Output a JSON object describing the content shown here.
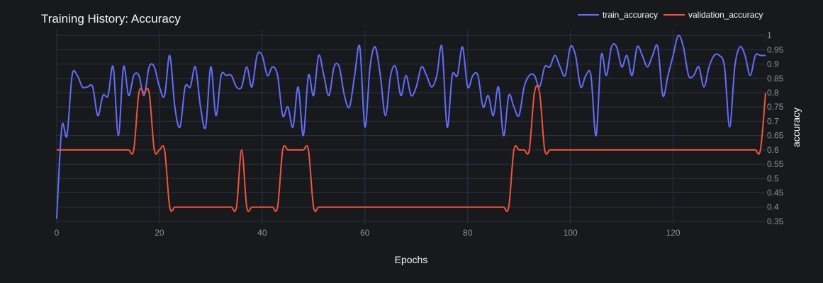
{
  "chart_data": {
    "type": "line",
    "title": "Training History: Accuracy",
    "xlabel": "Epochs",
    "ylabel": "accuracy",
    "xlim": [
      0,
      138
    ],
    "ylim": [
      0.34,
      1.02
    ],
    "x_ticks": [
      0,
      20,
      40,
      60,
      80,
      100,
      120
    ],
    "y_ticks": [
      0.35,
      0.4,
      0.45,
      0.5,
      0.55,
      0.6,
      0.65,
      0.7,
      0.75,
      0.8,
      0.85,
      0.9,
      0.95,
      1
    ],
    "grid": true,
    "legend_position": "top-right",
    "series": [
      {
        "name": "train_accuracy",
        "color": "#636efa",
        "values": [
          0.36,
          0.68,
          0.65,
          0.86,
          0.86,
          0.82,
          0.82,
          0.82,
          0.72,
          0.79,
          0.79,
          0.89,
          0.65,
          0.89,
          0.79,
          0.86,
          0.86,
          0.79,
          0.89,
          0.89,
          0.82,
          0.79,
          0.93,
          0.75,
          0.68,
          0.82,
          0.82,
          0.89,
          0.75,
          0.68,
          0.89,
          0.72,
          0.86,
          0.86,
          0.86,
          0.82,
          0.82,
          0.89,
          0.82,
          0.93,
          0.93,
          0.86,
          0.89,
          0.86,
          0.72,
          0.75,
          0.68,
          0.82,
          0.65,
          0.86,
          0.79,
          0.93,
          0.86,
          0.79,
          0.89,
          0.89,
          0.79,
          0.75,
          0.86,
          0.96,
          0.68,
          0.89,
          0.96,
          0.86,
          0.72,
          0.86,
          0.89,
          0.79,
          0.86,
          0.79,
          0.82,
          0.89,
          0.86,
          0.82,
          0.86,
          0.96,
          0.68,
          0.86,
          0.86,
          0.96,
          0.82,
          0.86,
          0.86,
          0.75,
          0.79,
          0.72,
          0.82,
          0.65,
          0.79,
          0.75,
          0.72,
          0.82,
          0.86,
          0.86,
          0.82,
          0.89,
          0.89,
          0.93,
          0.89,
          0.86,
          0.96,
          0.93,
          0.82,
          0.86,
          0.86,
          0.65,
          0.93,
          0.86,
          0.96,
          0.96,
          0.89,
          0.93,
          0.86,
          0.96,
          0.93,
          0.89,
          0.93,
          0.96,
          0.79,
          0.86,
          0.93,
          1.0,
          0.96,
          0.86,
          0.86,
          0.89,
          0.82,
          0.89,
          0.93,
          0.93,
          0.89,
          0.68,
          0.89,
          0.96,
          0.93,
          0.86,
          0.93,
          0.93,
          0.93
        ]
      },
      {
        "name": "validation_accuracy",
        "color": "#ef553b",
        "values": [
          0.6,
          0.6,
          0.6,
          0.6,
          0.6,
          0.6,
          0.6,
          0.6,
          0.6,
          0.6,
          0.6,
          0.6,
          0.6,
          0.6,
          0.6,
          0.6,
          0.8,
          0.8,
          0.8,
          0.6,
          0.6,
          0.6,
          0.4,
          0.4,
          0.4,
          0.4,
          0.4,
          0.4,
          0.4,
          0.4,
          0.4,
          0.4,
          0.4,
          0.4,
          0.4,
          0.4,
          0.6,
          0.4,
          0.4,
          0.4,
          0.4,
          0.4,
          0.4,
          0.4,
          0.6,
          0.6,
          0.6,
          0.6,
          0.6,
          0.6,
          0.4,
          0.4,
          0.4,
          0.4,
          0.4,
          0.4,
          0.4,
          0.4,
          0.4,
          0.4,
          0.4,
          0.4,
          0.4,
          0.4,
          0.4,
          0.4,
          0.4,
          0.4,
          0.4,
          0.4,
          0.4,
          0.4,
          0.4,
          0.4,
          0.4,
          0.4,
          0.4,
          0.4,
          0.4,
          0.4,
          0.4,
          0.4,
          0.4,
          0.4,
          0.4,
          0.4,
          0.4,
          0.4,
          0.4,
          0.6,
          0.6,
          0.6,
          0.6,
          0.8,
          0.8,
          0.6,
          0.6,
          0.6,
          0.6,
          0.6,
          0.6,
          0.6,
          0.6,
          0.6,
          0.6,
          0.6,
          0.6,
          0.6,
          0.6,
          0.6,
          0.6,
          0.6,
          0.6,
          0.6,
          0.6,
          0.6,
          0.6,
          0.6,
          0.6,
          0.6,
          0.6,
          0.6,
          0.6,
          0.6,
          0.6,
          0.6,
          0.6,
          0.6,
          0.6,
          0.6,
          0.6,
          0.6,
          0.6,
          0.6,
          0.6,
          0.6,
          0.6,
          0.6,
          0.8
        ]
      }
    ]
  }
}
